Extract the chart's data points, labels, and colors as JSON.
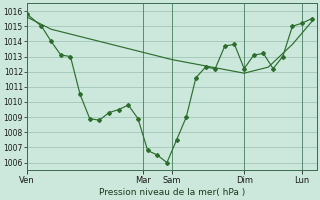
{
  "xlabel": "Pression niveau de la mer( hPa )",
  "bg_color": "#cce8dc",
  "line_color": "#2d6e2d",
  "grid_color": "#9abfb0",
  "ylim": [
    1005.5,
    1016.5
  ],
  "xlim": [
    0,
    120
  ],
  "xtick_pos": [
    0,
    48,
    60,
    90,
    114
  ],
  "xtick_labels": [
    "Ven",
    "Mar",
    "Sam",
    "Dim",
    "Lun"
  ],
  "line1_x": [
    0,
    6,
    10,
    14,
    18,
    22,
    26,
    30,
    34,
    38,
    42,
    46,
    50,
    54,
    58,
    62,
    66,
    70,
    74,
    78,
    82,
    86,
    90,
    94,
    98,
    102,
    106,
    110,
    114,
    118
  ],
  "line1_y": [
    1015.8,
    1015.0,
    1014.0,
    1013.1,
    1013.0,
    1010.5,
    1008.9,
    1008.8,
    1009.3,
    1009.5,
    1009.8,
    1008.9,
    1006.8,
    1006.5,
    1006.0,
    1007.5,
    1009.0,
    1011.6,
    1012.3,
    1012.2,
    1013.7,
    1013.8,
    1012.2,
    1013.1,
    1013.2,
    1012.2,
    1013.0,
    1015.0,
    1015.2,
    1015.5
  ],
  "line2_x": [
    0,
    10,
    20,
    30,
    40,
    50,
    60,
    70,
    80,
    90,
    100,
    110,
    118
  ],
  "line2_y": [
    1015.6,
    1014.8,
    1014.4,
    1014.0,
    1013.6,
    1013.2,
    1012.8,
    1012.5,
    1012.2,
    1011.9,
    1012.3,
    1013.8,
    1015.3
  ]
}
